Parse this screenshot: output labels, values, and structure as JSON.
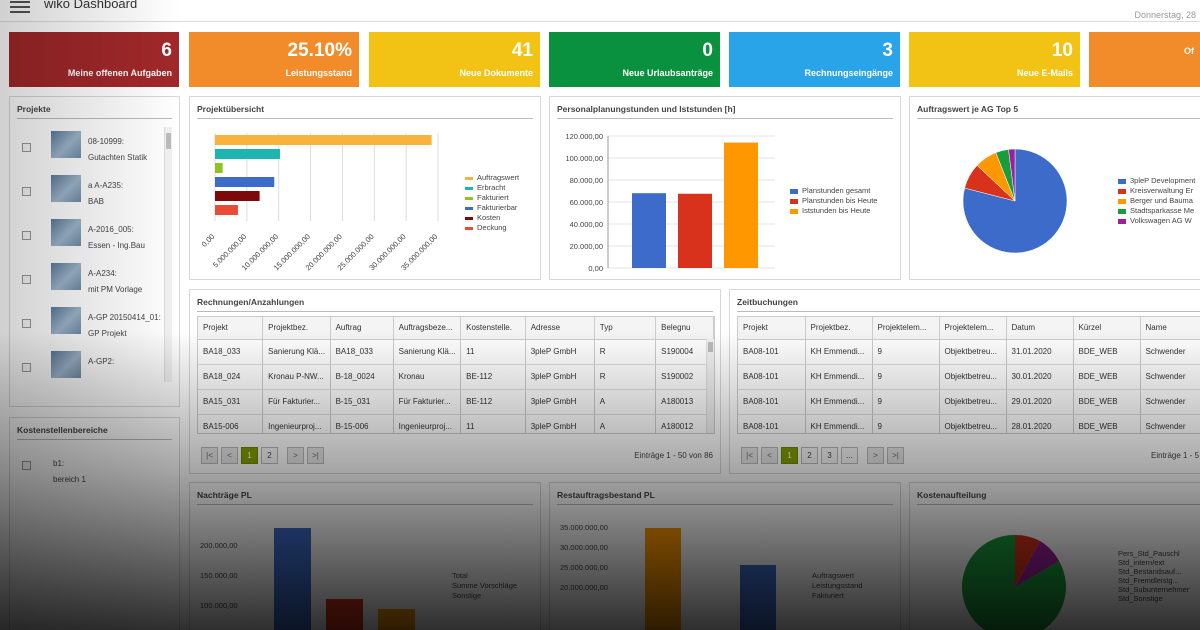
{
  "header": {
    "title": "wiko Dashboard",
    "date": "Donnerstag, 28"
  },
  "colors": {
    "dark_red": "#a1282a",
    "orange": "#f28c2b",
    "yellow": "#f2c315",
    "green": "#0a9140",
    "blue": "#2aa4e9",
    "pager_active": "#80a000"
  },
  "tiles": [
    {
      "value": "6",
      "label": "Meine offenen Aufgaben",
      "color": "#a1282a"
    },
    {
      "value": "25.10%",
      "label": "Leistungsstand",
      "color": "#f28c2b"
    },
    {
      "value": "41",
      "label": "Neue Dokumente",
      "color": "#f2c315"
    },
    {
      "value": "0",
      "label": "Neue Urlaubsanträge",
      "color": "#0a9140"
    },
    {
      "value": "3",
      "label": "Rechnungseingänge",
      "color": "#2aa4e9"
    },
    {
      "value": "10",
      "label": "Neue E-Mails",
      "color": "#f2c315"
    },
    {
      "value": "",
      "label": "Of",
      "color": "#f28c2b"
    }
  ],
  "projekte": {
    "title": "Projekte",
    "items": [
      {
        "line1": "08-10999:",
        "line2": "Gutachten Statik"
      },
      {
        "line1": "a A-A235:",
        "line2": "BAB"
      },
      {
        "line1": "A-2016_005:",
        "line2": "Essen - Ing.Bau"
      },
      {
        "line1": "A-A234:",
        "line2": "mit PM Vorlage"
      },
      {
        "line1": "A-GP 20150414_01:",
        "line2": "GP Projekt"
      },
      {
        "line1": "A-GP2:",
        "line2": ""
      }
    ]
  },
  "kostenstellen": {
    "title": "Kostenstellenbereiche",
    "item_line1": "b1:",
    "item_line2": "bereich 1"
  },
  "charts": {
    "projekt_title": "Projektübersicht",
    "projekt_ticks": [
      "0,00",
      "5.000.000,00",
      "10.000.000,00",
      "15.000.000,00",
      "20.000.000,00",
      "25.000.000,00",
      "30.000.000,00",
      "35.000.000,00"
    ],
    "personal_title": "Personalplanungstunden und Iststunden [h]",
    "personal_ticks": [
      "0,00",
      "20.000,00",
      "40.000,00",
      "60.000,00",
      "80.000,00",
      "100.000,00",
      "120.000,00"
    ],
    "auftrag_title": "Auftragswert je AG Top 5",
    "nachtraege_title": "Nachträge PL",
    "nachtraege_ticks": [
      "200.000,00",
      "150.000,00",
      "100.000,00"
    ],
    "nachtraege_legend": [
      "Total",
      "Summe Vorschläge",
      "Sonstige"
    ],
    "rest_title": "Restauftragsbestand PL",
    "rest_ticks": [
      "35.000.000,00",
      "30.000.000,00",
      "25.000.000,00",
      "20.000.000,00"
    ],
    "rest_legend": [
      "Auftragswert",
      "Leistungsstand",
      "Fakturiert"
    ],
    "kosten_title": "Kostenaufteilung",
    "kosten_legend": [
      "Pers_Std_Pauschl",
      "Std_intern/ext",
      "Std_Bestandsauf...",
      "Std_Fremdleistg...",
      "Std_Subunternehmer",
      "Std_Sonstige"
    ]
  },
  "chart_data": [
    {
      "type": "bar",
      "orientation": "horizontal",
      "title": "Projektübersicht",
      "categories": [
        "Auftragswert",
        "Erbracht",
        "Fakturiert",
        "Fakturierbar",
        "Kosten",
        "Deckung"
      ],
      "series": [
        {
          "values": [
            34000000,
            10200000,
            1200000,
            9300000,
            7000000,
            3600000
          ]
        }
      ],
      "colors": [
        "#f7b33b",
        "#1eb5b1",
        "#8fc31f",
        "#3c6bc9",
        "#7c0a0a",
        "#e94b35"
      ],
      "xlim": [
        0,
        35000000
      ],
      "legend": "right"
    },
    {
      "type": "bar",
      "title": "Personalplanungstunden und Iststunden [h]",
      "categories": [
        "Planstunden gesamt",
        "Planstunden bis Heute",
        "Iststunden bis Heute"
      ],
      "values": [
        68000,
        67500,
        114000
      ],
      "colors": [
        "#3c6bc9",
        "#d8321c",
        "#ff9800"
      ],
      "ylim": [
        0,
        120000
      ],
      "legend": "right"
    },
    {
      "type": "pie",
      "title": "Auftragswert je AG Top 5",
      "labels": [
        "3pleP Development",
        "Kreisverwaltung Er",
        "Berger und Bauma",
        "Stadtsparkasse Me",
        "Volkswagen AG W"
      ],
      "values": [
        79,
        8,
        7,
        4,
        2
      ],
      "colors": [
        "#3c6bc9",
        "#d8321c",
        "#ff9800",
        "#1a9c3b",
        "#9c1f9c"
      ],
      "legend": "right"
    }
  ],
  "rechnungen": {
    "title": "Rechnungen/Anzahlungen",
    "columns": [
      "Projekt",
      "Projektbez.",
      "Auftrag",
      "Auftragsbeze...",
      "Kostenstelle.",
      "Adresse",
      "Typ",
      "Belegnu"
    ],
    "rows": [
      [
        "BA18_033",
        "Sanierung Klä...",
        "BA18_033",
        "Sanierung Klä...",
        "11",
        "3pleP GmbH",
        "R",
        "S190004"
      ],
      [
        "BA18_024",
        "Kronau P-NW...",
        "B-18_0024",
        "Kronau",
        "BE-112",
        "3pleP GmbH",
        "R",
        "S190002"
      ],
      [
        "BA15_031",
        "Für Fakturier...",
        "B-15_031",
        "Für Fakturier...",
        "BE-112",
        "3pleP GmbH",
        "A",
        "A180013"
      ],
      [
        "BA15-006",
        "Ingenieurproj...",
        "B-15-006",
        "Ingenieurproj...",
        "11",
        "3pleP GmbH",
        "A",
        "A180012"
      ]
    ],
    "pages": [
      "1",
      "2"
    ],
    "info": "Einträge 1 - 50 von 86"
  },
  "zeitbuchungen": {
    "title": "Zeitbuchungen",
    "columns": [
      "Projekt",
      "Projektbez.",
      "Projektelem...",
      "Projektelem...",
      "Datum",
      "Kürzel",
      "Name"
    ],
    "rows": [
      [
        "BA08-101",
        "KH Emmendi...",
        "9",
        "Objektbetreu...",
        "31.01.2020",
        "BDE_WEB",
        "Schwender"
      ],
      [
        "BA08-101",
        "KH Emmendi...",
        "9",
        "Objektbetreu...",
        "30.01.2020",
        "BDE_WEB",
        "Schwender"
      ],
      [
        "BA08-101",
        "KH Emmendi...",
        "9",
        "Objektbetreu...",
        "29.01.2020",
        "BDE_WEB",
        "Schwender"
      ],
      [
        "BA08-101",
        "KH Emmendi...",
        "9",
        "Objektbetreu...",
        "28.01.2020",
        "BDE_WEB",
        "Schwender"
      ]
    ],
    "pages": [
      "1",
      "2",
      "3",
      "..."
    ],
    "info": "Einträge 1 - 5"
  }
}
